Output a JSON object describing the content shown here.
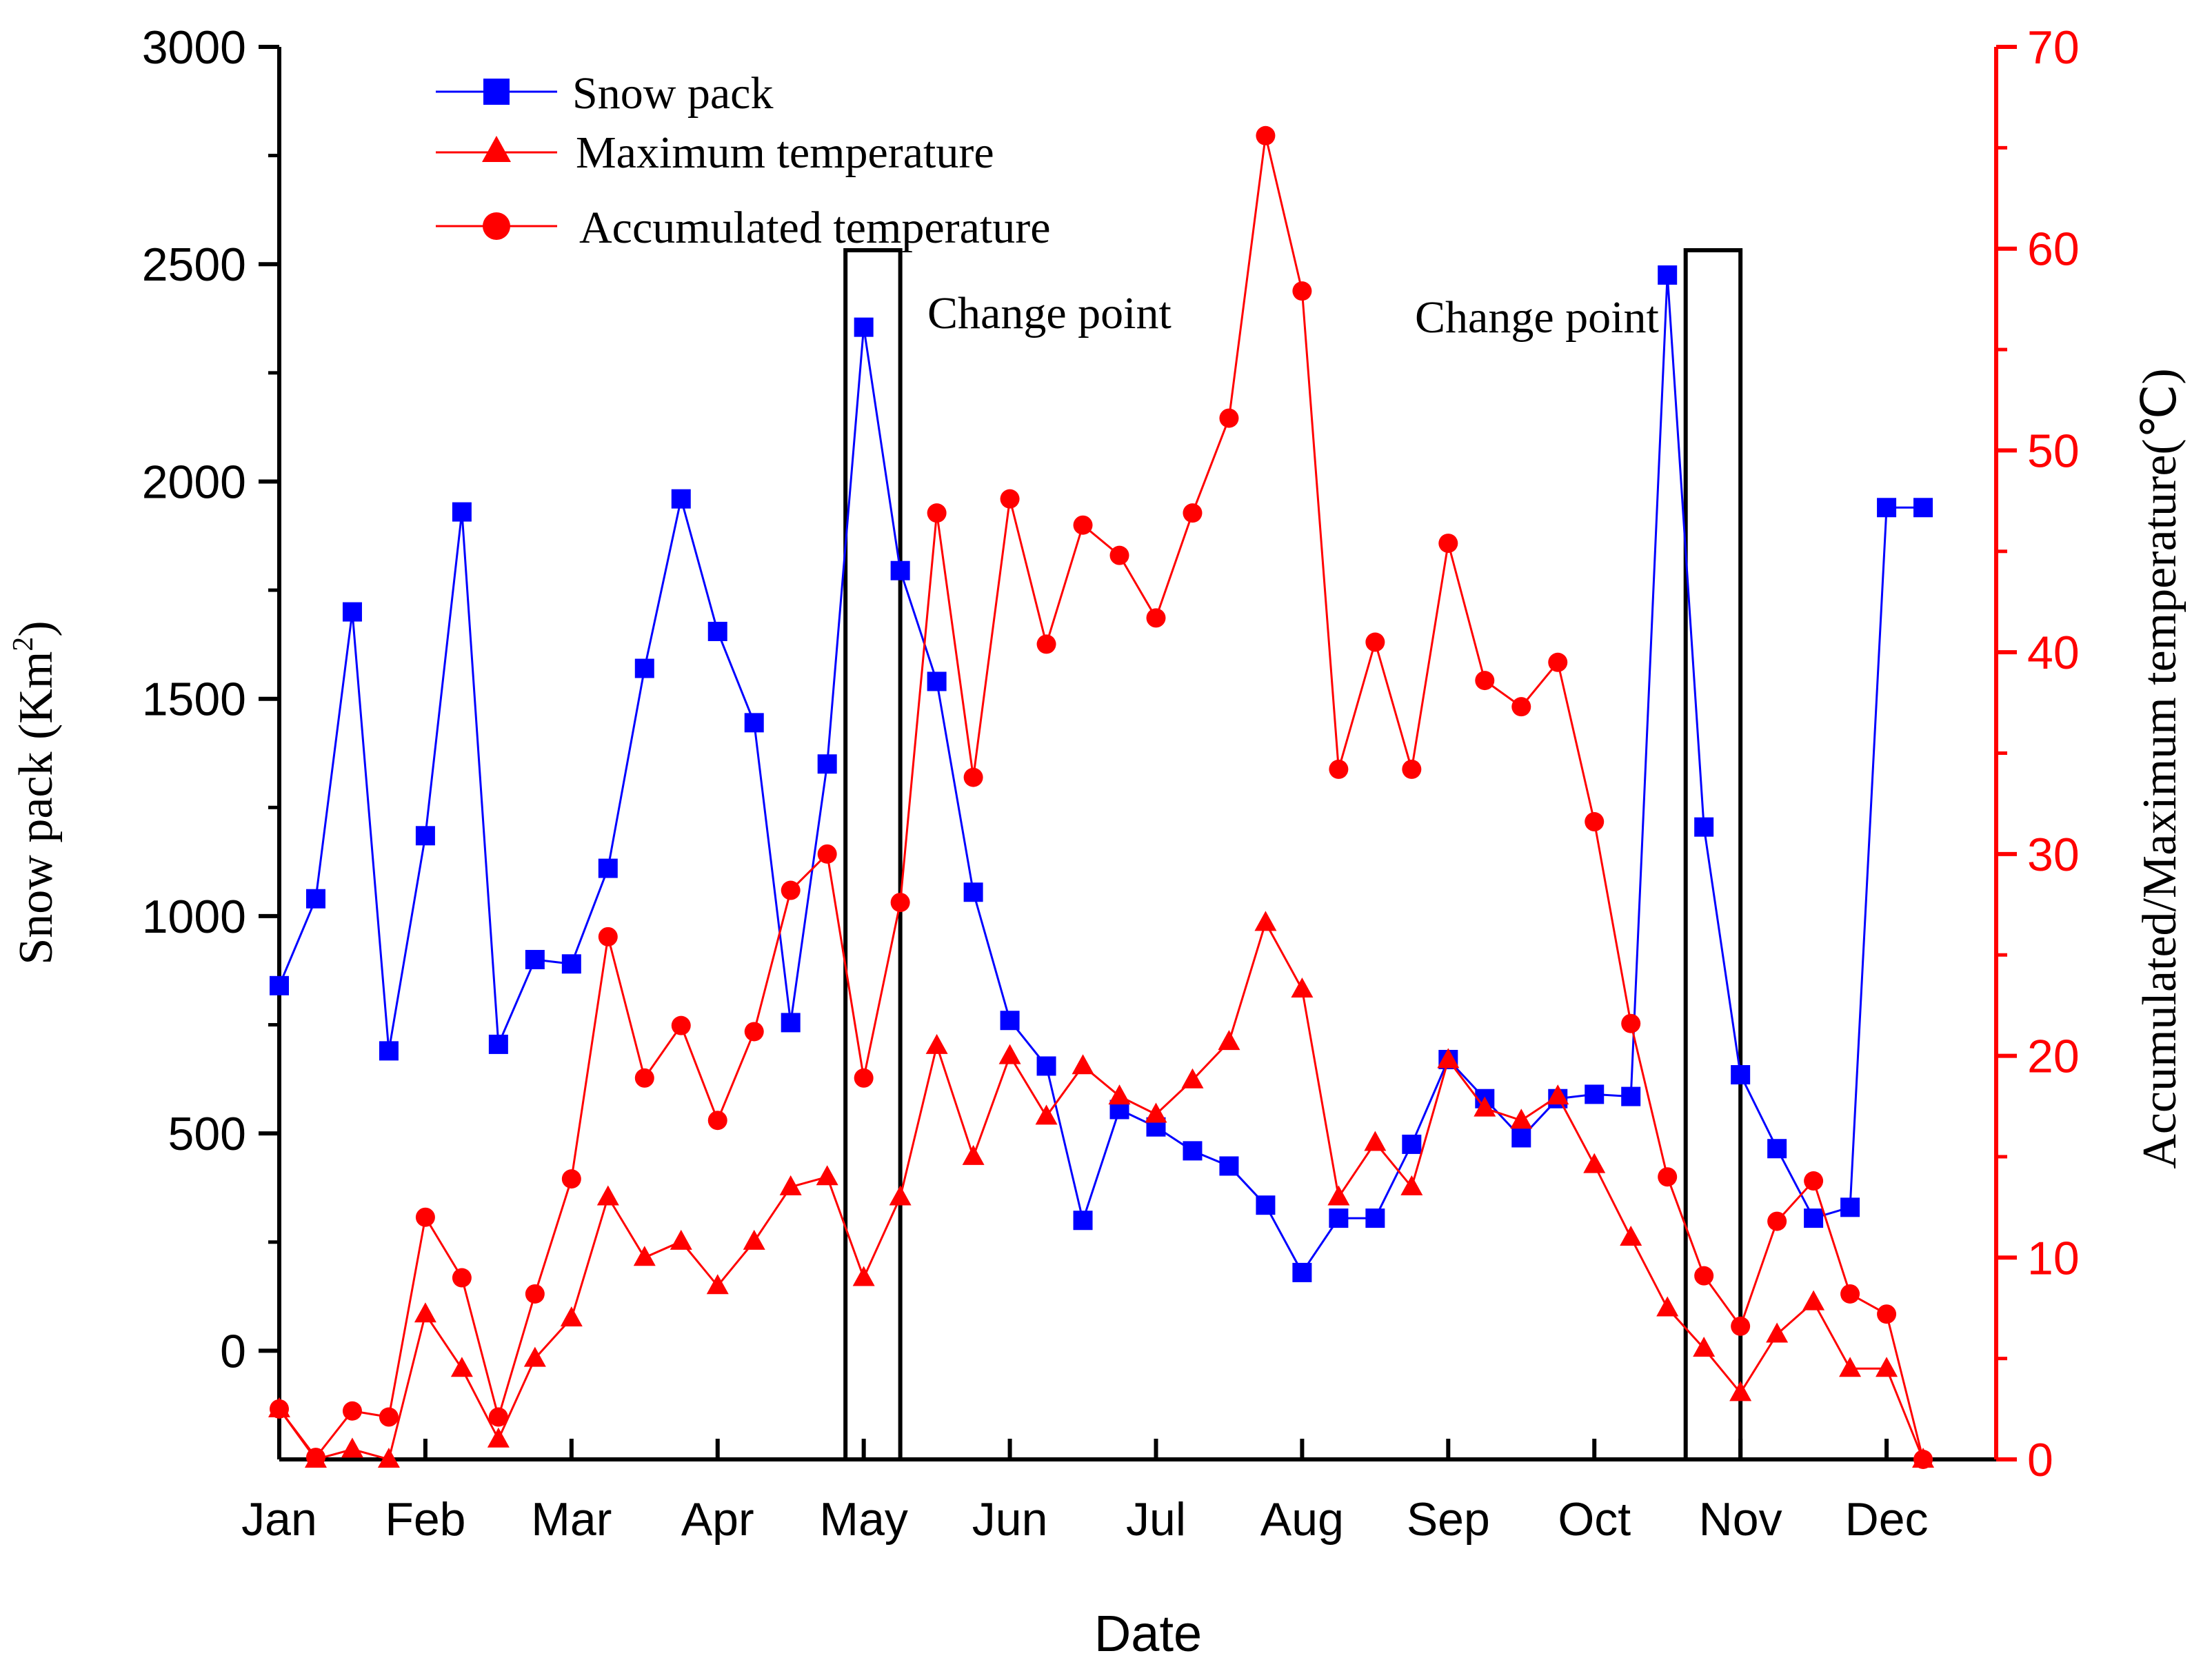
{
  "chart_data": {
    "type": "line",
    "xlabel": "Date",
    "ylabel_left_main": "Snow pack (Km",
    "ylabel_left_sup": "2",
    "ylabel_left_end": ")",
    "ylabel_right": "Accumulated/Maximum temperature(℃)",
    "x_ticks": [
      "Jan",
      "Feb",
      "Mar",
      "Apr",
      "May",
      "Jun",
      "Jul",
      "Aug",
      "Sep",
      "Oct",
      "Nov",
      "Dec"
    ],
    "x_range": [
      0,
      47
    ],
    "y_left_ticks": [
      "3000",
      "2500",
      "2000",
      "1500",
      "1000",
      "500",
      "0"
    ],
    "y_left_tick_values": [
      3000,
      2500,
      2000,
      1500,
      1000,
      500,
      0
    ],
    "y_left_range": [
      -250,
      3000
    ],
    "y_right_ticks": [
      "70",
      "60",
      "50",
      "40",
      "30",
      "20",
      "10",
      "0"
    ],
    "y_right_tick_values": [
      70,
      60,
      50,
      40,
      30,
      20,
      10,
      0
    ],
    "y_right_range": [
      0,
      70
    ],
    "series": [
      {
        "name": "Snow pack",
        "axis": "left",
        "color": "#0000ff",
        "marker": "square",
        "values": [
          840,
          1040,
          1700,
          690,
          1185,
          1930,
          705,
          900,
          890,
          1110,
          1570,
          1960,
          1655,
          1445,
          755,
          1350,
          2355,
          1795,
          1540,
          1055,
          760,
          655,
          300,
          555,
          515,
          460,
          425,
          335,
          180,
          305,
          305,
          475,
          670,
          580,
          490,
          580,
          590,
          585,
          2475,
          1205,
          635,
          465,
          305,
          330,
          1940,
          1940
        ]
      },
      {
        "name": "Maximum temperature",
        "axis": "right",
        "color": "#ff0000",
        "marker": "triangle",
        "values": [
          2.5,
          0,
          0.5,
          0,
          7.2,
          4.5,
          1,
          5,
          7,
          13,
          10,
          10.8,
          8.6,
          10.8,
          13.5,
          14,
          9,
          13,
          20.5,
          15,
          20,
          17,
          19.5,
          18,
          17.1,
          18.8,
          20.7,
          26.6,
          23.3,
          13,
          15.7,
          13.5,
          19.8,
          17.4,
          16.8,
          18,
          14.6,
          11,
          7.5,
          5.5,
          3.3,
          6.2,
          7.8,
          4.5,
          4.5,
          0
        ]
      },
      {
        "name": "Accumulated temperature",
        "axis": "right",
        "color": "#ff0000",
        "marker": "circle",
        "values": [
          2.5,
          0.1,
          2.4,
          2.1,
          12,
          9,
          2.1,
          8.2,
          13.9,
          25.9,
          18.9,
          21.5,
          16.8,
          21.2,
          28.2,
          30,
          18.9,
          27.6,
          46.9,
          33.8,
          47.6,
          40.4,
          46.3,
          44.8,
          41.7,
          46.9,
          51.6,
          65.6,
          57.9,
          34.2,
          40.5,
          34.2,
          45.4,
          38.6,
          37.3,
          39.5,
          31.6,
          21.6,
          14,
          9.1,
          6.6,
          11.8,
          13.8,
          8.2,
          7.2,
          0
        ]
      }
    ],
    "annotations": [
      {
        "text": "Change point",
        "box_x": [
          15.5,
          17
        ]
      },
      {
        "text": "Change point",
        "box_x": [
          38.5,
          40
        ]
      }
    ],
    "legend_position": "top-left"
  }
}
